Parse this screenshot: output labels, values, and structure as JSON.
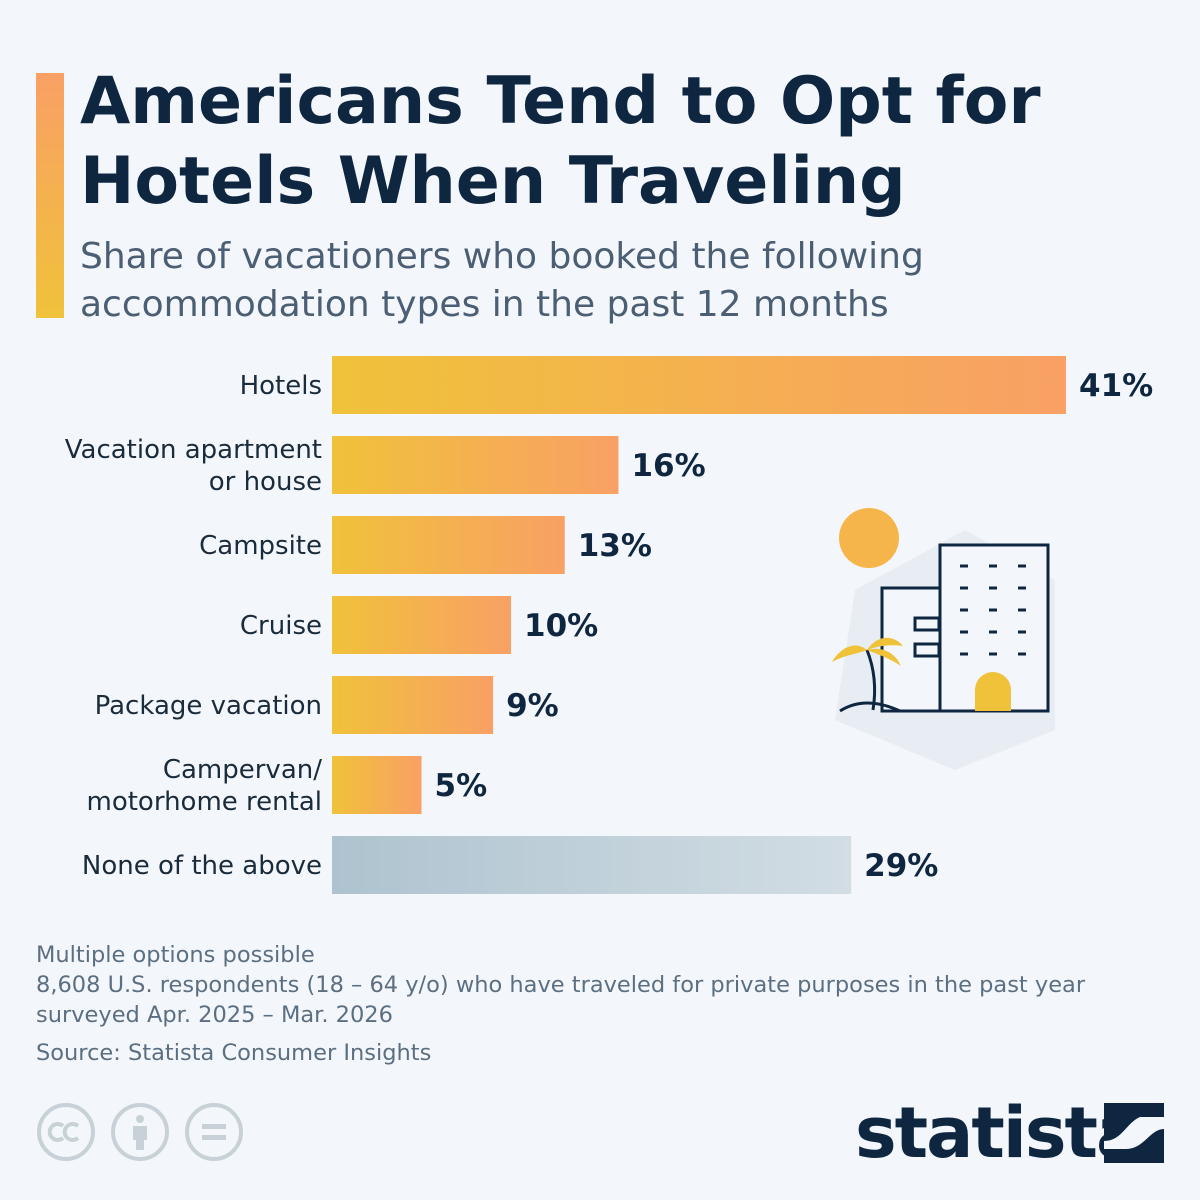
{
  "title": "Americans Tend to Opt for Hotels When Traveling",
  "subtitle": "Share of vacationers who booked the following accommodation types in the past 12 months",
  "notes": {
    "line1": "Multiple options possible",
    "line2": "8,608 U.S. respondents (18 – 64 y/o) who have traveled for private purposes in the past year",
    "line3": "surveyed Apr. 2025 – Mar. 2026",
    "source": "Source: Statista Consumer Insights"
  },
  "brand": {
    "name": "statista"
  },
  "icons": [
    "cc-license-icon",
    "attribution-icon",
    "no-derivatives-icon",
    "statista-logo-icon",
    "hotel-illustration-icon"
  ],
  "colors": {
    "title": "#0f2640",
    "bar_gradient_start": "#f0c23a",
    "bar_gradient_end": "#f9a065",
    "none_bar_start": "#aec3cf",
    "none_bar_end": "#d2dde4",
    "background": "#f3f7fb"
  },
  "chart_data": {
    "type": "bar",
    "orientation": "horizontal",
    "categories": [
      [
        "Hotels"
      ],
      [
        "Vacation apartment",
        "or house"
      ],
      [
        "Campsite"
      ],
      [
        "Cruise"
      ],
      [
        "Package vacation"
      ],
      [
        "Campervan/",
        "motorhome rental"
      ],
      [
        "None of the above"
      ]
    ],
    "values": [
      41,
      16,
      13,
      10,
      9,
      5,
      29
    ],
    "value_labels": [
      "41%",
      "16%",
      "13%",
      "10%",
      "9%",
      "5%",
      "29%"
    ],
    "unit": "%",
    "highlight_last_as_neutral": true,
    "xlim": [
      0,
      41
    ],
    "grid": false,
    "legend": "none"
  }
}
